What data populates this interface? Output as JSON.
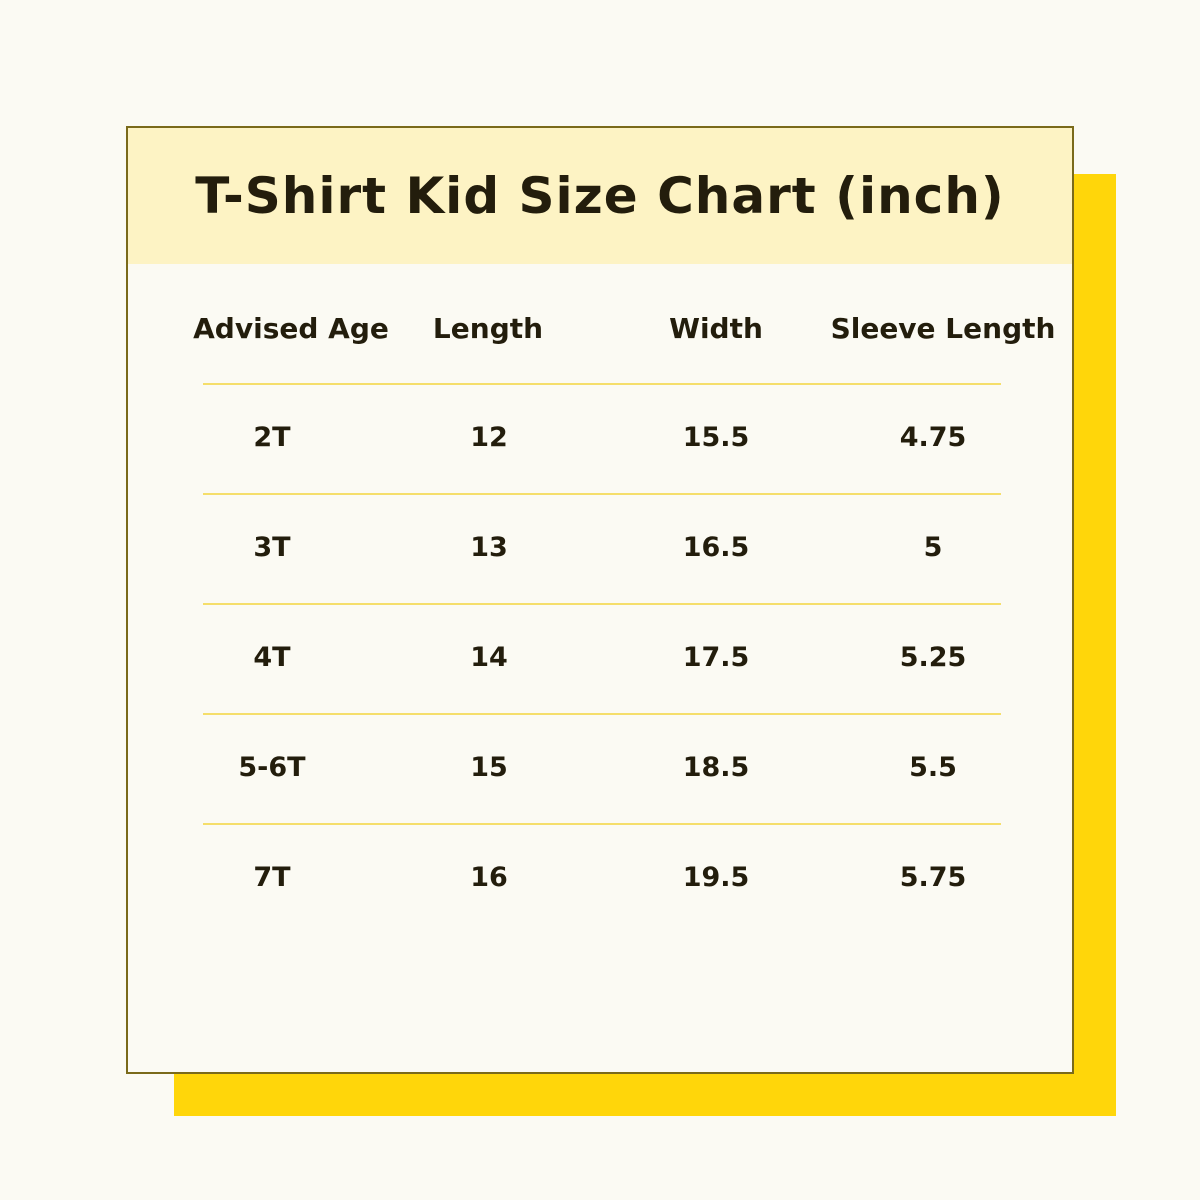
{
  "title": "T-Shirt Kid Size Chart (inch)",
  "columns": [
    "Advised Age",
    "Length",
    "Width",
    "Sleeve Length"
  ],
  "rows": [
    [
      "2T",
      "12",
      "15.5",
      "4.75"
    ],
    [
      "3T",
      "13",
      "16.5",
      "5"
    ],
    [
      "4T",
      "14",
      "17.5",
      "5.25"
    ],
    [
      "5-6T",
      "15",
      "18.5",
      "5.5"
    ],
    [
      "7T",
      "16",
      "19.5",
      "5.75"
    ]
  ],
  "colors": {
    "background": "#fbfaf3",
    "header_band": "#fdf3c4",
    "shadow": "#ffd60a",
    "border": "#7a6a1a",
    "divider": "#f5de6a"
  }
}
